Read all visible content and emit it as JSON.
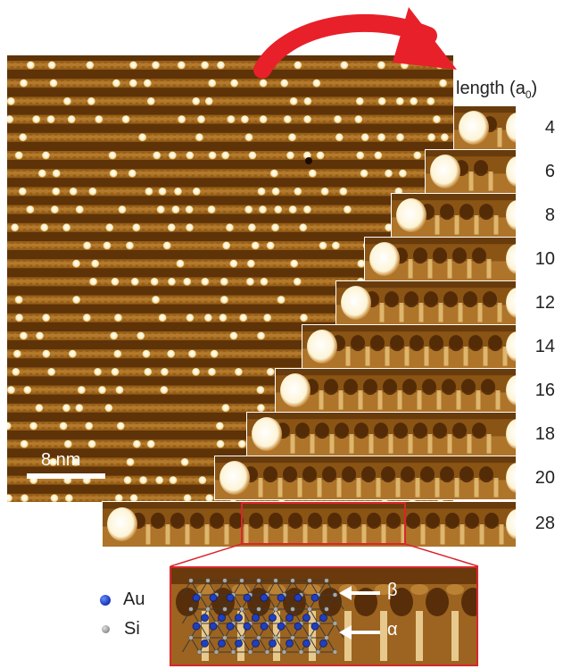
{
  "figure": {
    "scale_bar_label": "8 nm",
    "length_header_prefix": "length (a",
    "length_header_sub": "0",
    "length_header_suffix": ")",
    "lengths": [
      "4",
      "6",
      "8",
      "10",
      "12",
      "14",
      "16",
      "18",
      "20",
      "28"
    ],
    "legend": [
      {
        "label": "Au",
        "color": "#1f3fbf"
      },
      {
        "label": "Si",
        "color": "#9a9a9a"
      }
    ],
    "annotations": [
      {
        "label": "β"
      },
      {
        "label": "α"
      }
    ],
    "colors": {
      "arrow": "#e8202a",
      "zoom_frame": "#d9262c",
      "stm_dark": "#5a300a",
      "stm_mid": "#a56a1c",
      "stm_light": "#f7e9b8"
    }
  }
}
